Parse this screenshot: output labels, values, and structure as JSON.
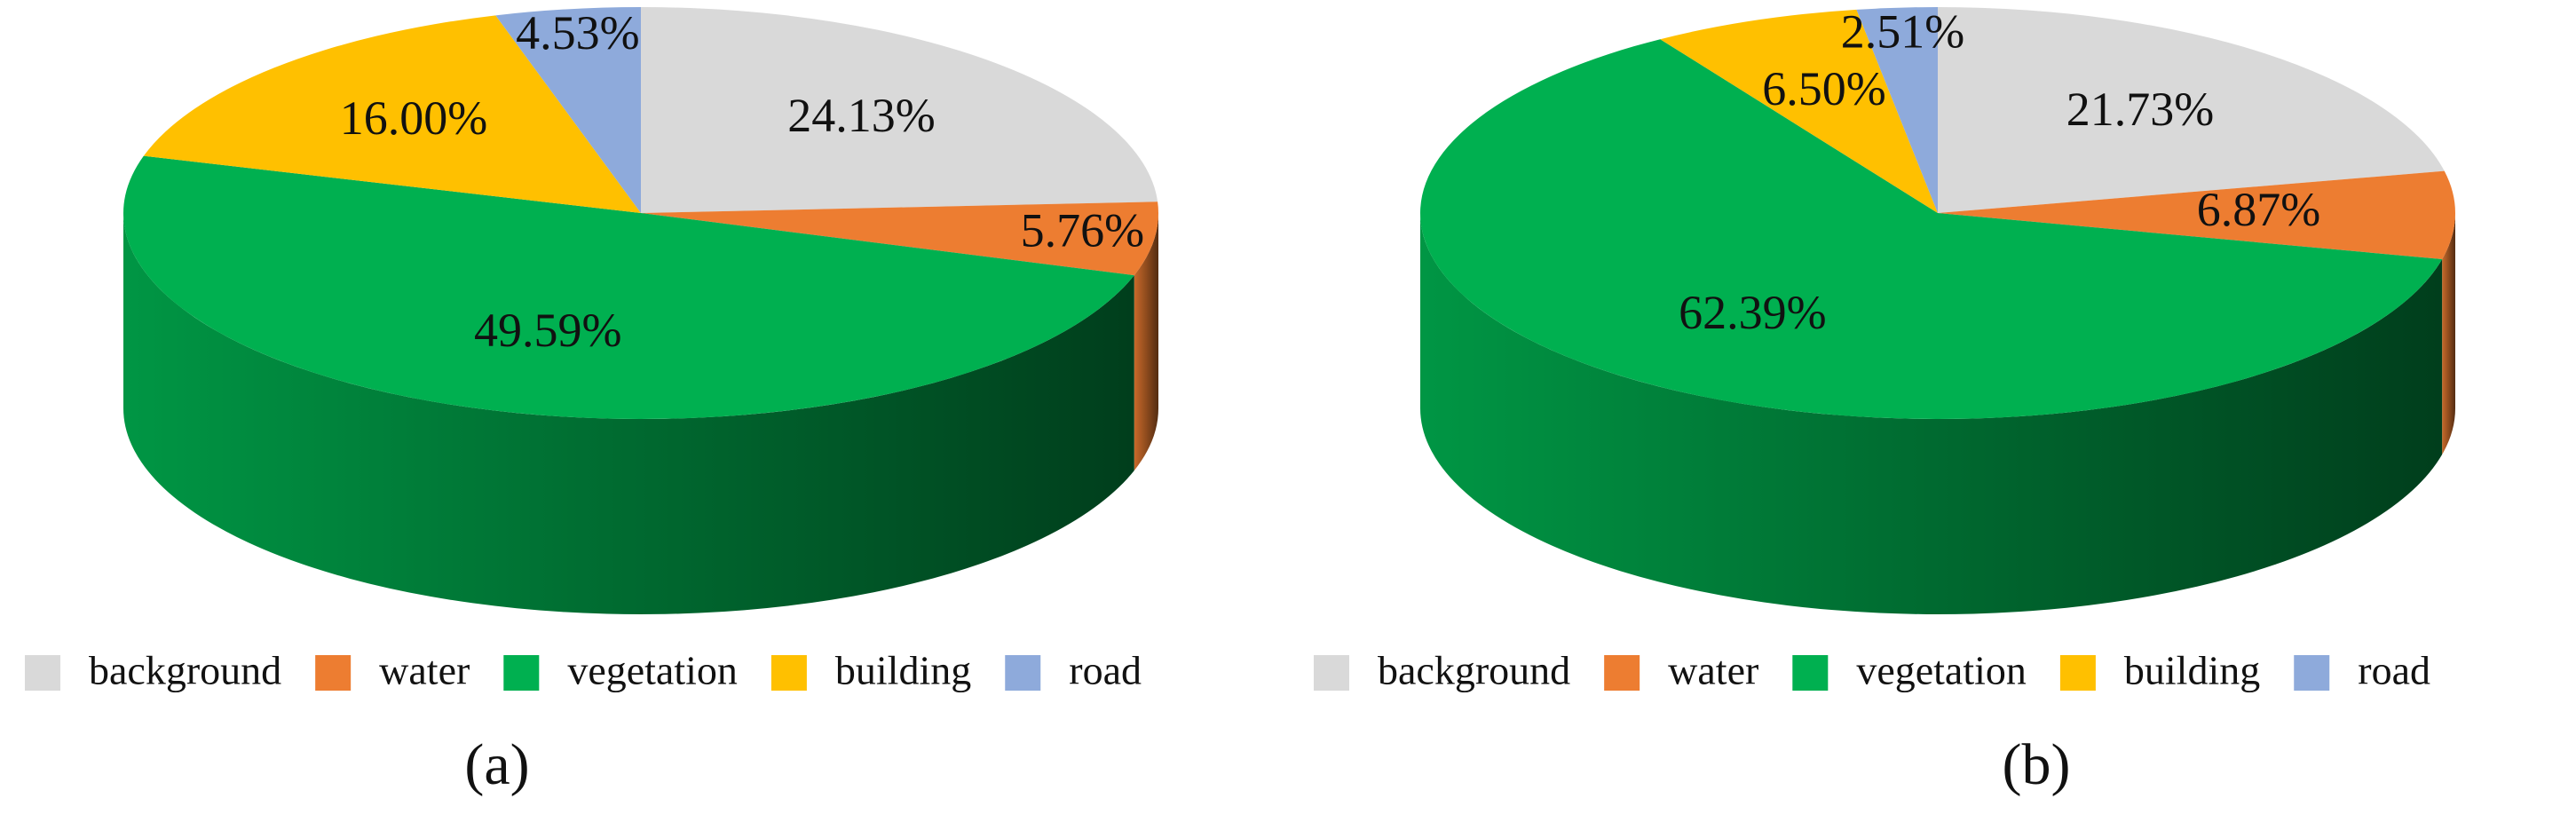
{
  "chart_data": [
    {
      "type": "pie",
      "caption": "(a)",
      "categories": [
        "background",
        "water",
        "vegetation",
        "building",
        "road"
      ],
      "values": [
        24.13,
        5.76,
        49.59,
        16.0,
        4.53
      ],
      "value_labels": [
        "24.13%",
        "5.76%",
        "49.59%",
        "16.00%",
        "4.53%"
      ],
      "colors": [
        "#d9d9d9",
        "#ed7d31",
        "#00b050",
        "#ffc000",
        "#8eaadb"
      ],
      "legend": "bottom"
    },
    {
      "type": "pie",
      "caption": "(b)",
      "categories": [
        "background",
        "water",
        "vegetation",
        "building",
        "road"
      ],
      "values": [
        21.73,
        6.87,
        62.39,
        6.5,
        2.51
      ],
      "value_labels": [
        "21.73%",
        "6.87%",
        "62.39%",
        "6.50%",
        "2.51%"
      ],
      "colors": [
        "#d9d9d9",
        "#ed7d31",
        "#00b050",
        "#ffc000",
        "#8eaadb"
      ],
      "legend": "bottom"
    }
  ]
}
